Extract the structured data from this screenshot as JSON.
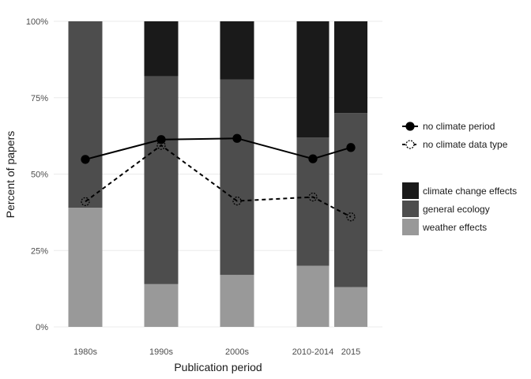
{
  "chart_data": {
    "type": "bar",
    "subtype": "stacked-percent-with-lines",
    "xlabel": "Publication period",
    "ylabel": "Percent of papers",
    "categories": [
      "1980s",
      "1990s",
      "2000s",
      "2010-2014",
      "2015"
    ],
    "ylim": [
      0,
      100
    ],
    "y_ticks": [
      0,
      25,
      50,
      75,
      100
    ],
    "y_tick_labels": [
      "0%",
      "25%",
      "50%",
      "75%",
      "100%"
    ],
    "grid": true,
    "bar_series": [
      {
        "name": "weather effects",
        "color": "#999999",
        "values": [
          39,
          14,
          17,
          20,
          13
        ]
      },
      {
        "name": "general ecology",
        "color": "#4d4d4d",
        "values": [
          61,
          68,
          64,
          42,
          57
        ]
      },
      {
        "name": "climate change effects",
        "color": "#1a1a1a",
        "values": [
          0,
          18,
          19,
          38,
          30
        ]
      }
    ],
    "line_series": [
      {
        "name": "no climate period",
        "style": "solid",
        "marker": "filled-circle",
        "color": "#000000",
        "values": [
          54.8,
          61.3,
          61.7,
          55.0,
          58.7
        ]
      },
      {
        "name": "no climate data type",
        "style": "dashed",
        "marker": "open-circle",
        "color": "#000000",
        "values": [
          41.0,
          59.4,
          41.2,
          42.5,
          36.0
        ]
      }
    ],
    "legend_placement": "right",
    "line_legend": [
      "no climate period",
      "no climate data type"
    ],
    "bar_legend": [
      "climate change effects",
      "general ecology",
      "weather effects"
    ]
  }
}
